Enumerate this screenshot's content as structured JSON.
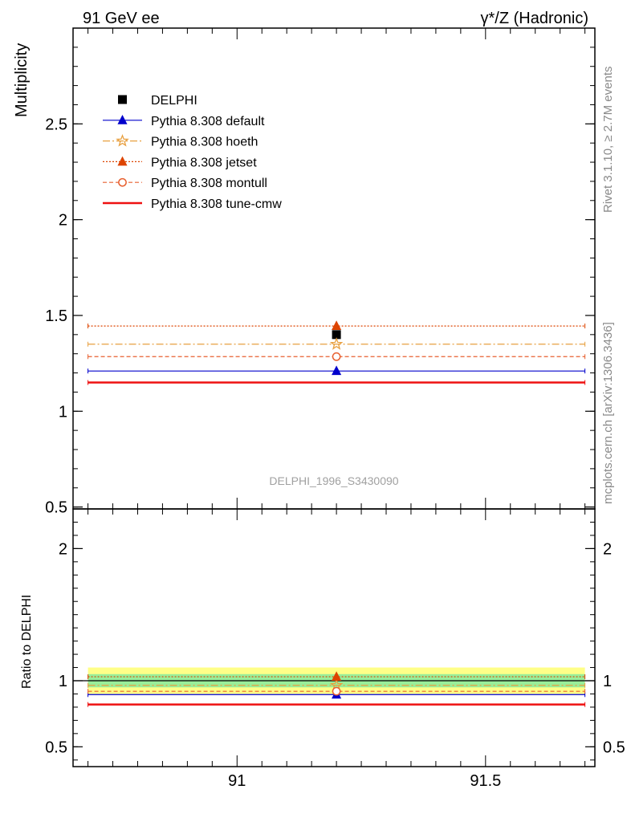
{
  "header": {
    "left_title": "91 GeV ee",
    "right_title": "γ*/Z (Hadronic)"
  },
  "side_labels": {
    "rivet": "Rivet 3.1.10, ≥ 2.7M events",
    "mcplots": "mcplots.cern.ch [arXiv:1306.3436]"
  },
  "analysis_id": "DELPHI_1996_S3430090",
  "chart_data": [
    {
      "type": "scatter",
      "ylabel": "Multiplicity",
      "xlim": [
        90.67,
        91.72
      ],
      "ylim": [
        0.49,
        3.0
      ],
      "yticks": [
        {
          "v": 0.5,
          "label": "0.5"
        },
        {
          "v": 1,
          "label": "1"
        },
        {
          "v": 1.5,
          "label": "1.5"
        },
        {
          "v": 2,
          "label": "2"
        },
        {
          "v": 2.5,
          "label": "2.5"
        }
      ],
      "bin": [
        90.7,
        91.7
      ],
      "x_center": 91.2,
      "legend_placement": "top-left",
      "series": [
        {
          "name": "DELPHI",
          "value": 1.4,
          "color": "#000000",
          "marker": "square",
          "line": "none"
        },
        {
          "name": "Pythia 8.308 default",
          "value": 1.21,
          "color": "#0000cc",
          "marker": "triangle",
          "line": "solid"
        },
        {
          "name": "Pythia 8.308 hoeth",
          "value": 1.35,
          "color": "#e8a040",
          "marker": "star-open",
          "line": "dashdot"
        },
        {
          "name": "Pythia 8.308 jetset",
          "value": 1.445,
          "color": "#dd4400",
          "marker": "triangle",
          "line": "dotted"
        },
        {
          "name": "Pythia 8.308 montull",
          "value": 1.285,
          "color": "#e86030",
          "marker": "circle-open",
          "line": "dashed"
        },
        {
          "name": "Pythia 8.308 tune-cmw",
          "value": 1.15,
          "color": "#ee1111",
          "marker": "none",
          "line": "solid-thick"
        }
      ]
    },
    {
      "type": "scatter",
      "ylabel": "Ratio to DELPHI",
      "xlim": [
        90.67,
        91.72
      ],
      "ylim": [
        0.35,
        2.3
      ],
      "xticks": [
        {
          "v": 91,
          "label": "91"
        },
        {
          "v": 91.5,
          "label": "91.5"
        }
      ],
      "yticks": [
        {
          "v": 0.5,
          "label": "0.5"
        },
        {
          "v": 1,
          "label": "1"
        },
        {
          "v": 2,
          "label": "2"
        }
      ],
      "bands": {
        "yellow": [
          0.9,
          1.1
        ],
        "green": [
          0.95,
          1.05
        ]
      },
      "series": [
        {
          "name": "Pythia 8.308 default",
          "value": 0.895,
          "color": "#0000cc",
          "marker": "triangle",
          "line": "solid"
        },
        {
          "name": "Pythia 8.308 hoeth",
          "value": 0.965,
          "color": "#e8a040",
          "marker": "star-open",
          "line": "dashdot"
        },
        {
          "name": "Pythia 8.308 jetset",
          "value": 1.03,
          "color": "#dd4400",
          "marker": "triangle",
          "line": "dotted"
        },
        {
          "name": "Pythia 8.308 montull",
          "value": 0.92,
          "color": "#e86030",
          "marker": "circle-open",
          "line": "dashed"
        },
        {
          "name": "Pythia 8.308 tune-cmw",
          "value": 0.82,
          "color": "#ee1111",
          "marker": "none",
          "line": "solid-thick"
        }
      ]
    }
  ]
}
